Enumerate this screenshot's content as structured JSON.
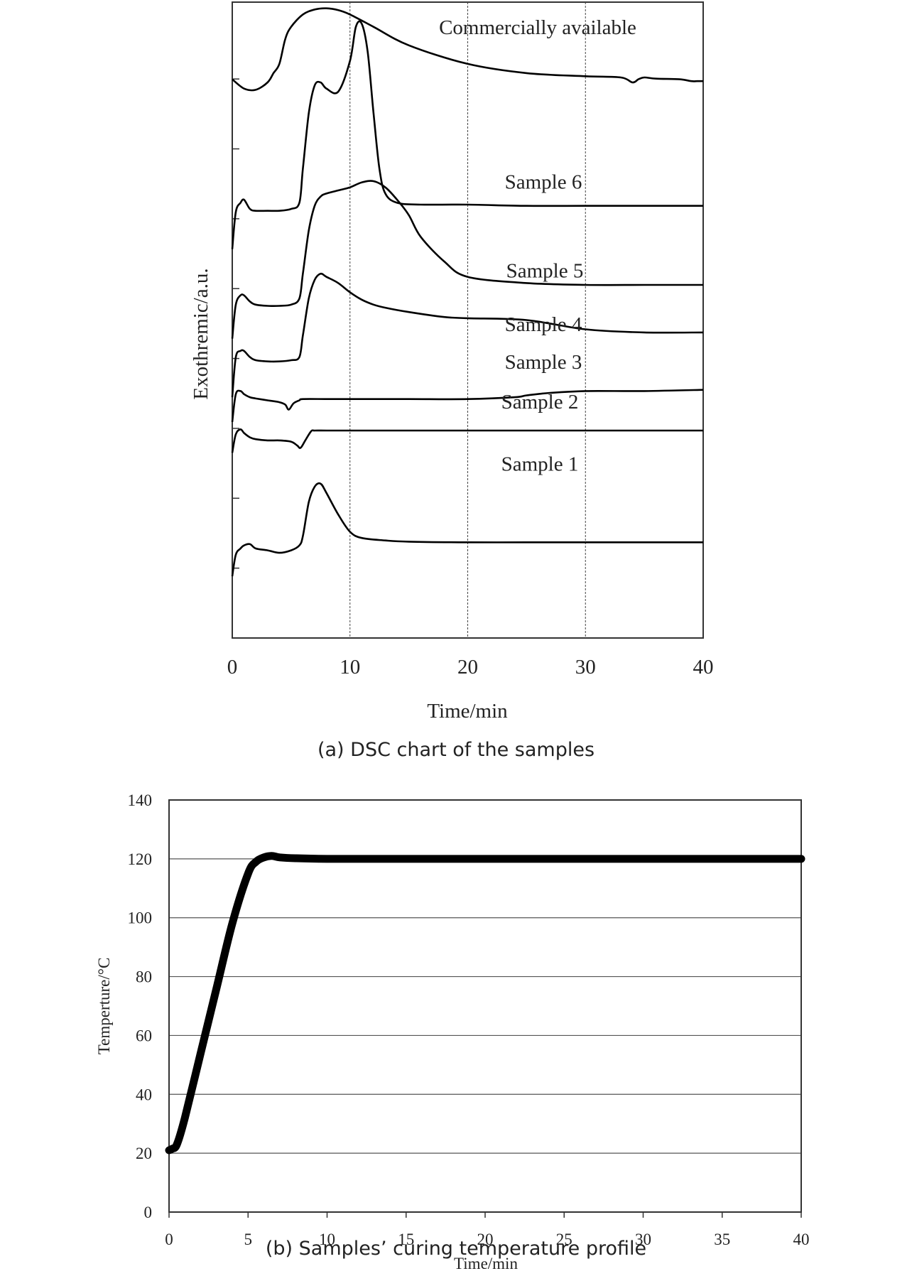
{
  "chart_data": [
    {
      "type": "line",
      "caption": "(a) DSC chart of the samples",
      "xlabel": "Time/min",
      "ylabel": "Exothremic/a.u.",
      "xlim": [
        0,
        40
      ],
      "x_ticks": [
        "0",
        "10",
        "20",
        "30",
        "40"
      ],
      "vertical_gridlines_at": [
        10,
        20,
        30
      ],
      "y_scale": "arbitrary units, stacked offset traces",
      "series": [
        {
          "name": "Commercially available",
          "x": [
            0,
            1,
            2,
            3,
            3.5,
            4,
            4.5,
            5,
            6,
            7,
            8,
            9,
            10,
            12,
            15,
            20,
            25,
            30,
            33,
            34,
            34.5,
            35,
            36,
            38,
            39,
            39.5,
            40
          ],
          "values": [
            9.05,
            8.9,
            8.88,
            9.0,
            9.15,
            9.3,
            9.7,
            9.9,
            10.1,
            10.18,
            10.2,
            10.17,
            10.1,
            9.9,
            9.6,
            9.3,
            9.15,
            9.1,
            9.08,
            9.0,
            9.05,
            9.08,
            9.06,
            9.05,
            9.02,
            9.02,
            9.02
          ]
        },
        {
          "name": "Sample 6",
          "x": [
            0,
            0.3,
            0.7,
            1,
            1.5,
            2,
            3,
            4,
            5,
            5.7,
            6,
            6.5,
            7,
            7.5,
            8,
            9,
            10,
            10.5,
            11,
            11.5,
            12,
            12.5,
            13,
            14,
            16,
            20,
            25,
            30,
            35,
            40
          ],
          "values": [
            6.3,
            6.9,
            7.05,
            7.1,
            6.95,
            6.92,
            6.92,
            6.92,
            6.95,
            7.05,
            7.6,
            8.5,
            8.95,
            9.0,
            8.9,
            8.85,
            9.35,
            9.9,
            9.95,
            9.5,
            8.5,
            7.6,
            7.2,
            7.05,
            7.02,
            7.02,
            7.0,
            7.0,
            7.0,
            7.0
          ]
        },
        {
          "name": "Sample 5",
          "x": [
            0,
            0.3,
            0.7,
            1,
            1.5,
            2,
            3,
            4,
            5,
            5.7,
            6,
            6.5,
            7,
            7.5,
            8,
            9,
            10,
            11,
            12,
            13,
            14,
            15,
            16,
            18,
            20,
            25,
            30,
            35,
            40
          ],
          "values": [
            4.85,
            5.4,
            5.55,
            5.55,
            5.45,
            5.4,
            5.38,
            5.38,
            5.4,
            5.5,
            5.9,
            6.6,
            7.0,
            7.15,
            7.2,
            7.25,
            7.3,
            7.38,
            7.4,
            7.3,
            7.1,
            6.85,
            6.5,
            6.1,
            5.85,
            5.75,
            5.72,
            5.72,
            5.72
          ]
        },
        {
          "name": "Sample 4",
          "x": [
            0,
            0.3,
            0.7,
            1,
            1.5,
            2,
            3,
            4,
            5,
            5.7,
            6,
            6.5,
            7,
            7.5,
            8,
            9,
            10,
            11,
            12,
            13,
            15,
            18,
            20,
            25,
            30,
            35,
            40
          ],
          "values": [
            3.9,
            4.55,
            4.65,
            4.65,
            4.55,
            4.5,
            4.48,
            4.48,
            4.5,
            4.55,
            4.9,
            5.5,
            5.8,
            5.9,
            5.85,
            5.75,
            5.6,
            5.48,
            5.4,
            5.35,
            5.28,
            5.2,
            5.18,
            5.15,
            5.0,
            4.95,
            4.95
          ]
        },
        {
          "name": "Sample 3",
          "x": [
            0,
            0.3,
            0.7,
            1,
            1.5,
            2,
            3,
            4,
            4.5,
            4.8,
            5.2,
            5.7,
            6,
            8,
            10,
            15,
            20,
            24,
            25,
            27,
            30,
            35,
            40
          ],
          "values": [
            3.5,
            3.95,
            4.0,
            3.95,
            3.9,
            3.88,
            3.85,
            3.82,
            3.78,
            3.7,
            3.8,
            3.85,
            3.87,
            3.87,
            3.87,
            3.87,
            3.87,
            3.9,
            3.93,
            3.97,
            4.0,
            4.0,
            4.02
          ]
        },
        {
          "name": "Sample 2",
          "x": [
            0,
            0.3,
            0.7,
            1,
            1.5,
            2,
            3,
            4,
            5,
            5.5,
            5.8,
            6.2,
            6.7,
            7,
            8,
            10,
            20,
            30,
            40
          ],
          "values": [
            3.0,
            3.3,
            3.38,
            3.32,
            3.25,
            3.22,
            3.2,
            3.2,
            3.18,
            3.12,
            3.08,
            3.2,
            3.35,
            3.36,
            3.36,
            3.36,
            3.36,
            3.36,
            3.36
          ]
        },
        {
          "name": "Sample 1",
          "x": [
            0,
            0.3,
            0.7,
            1,
            1.5,
            2,
            3,
            4,
            5,
            5.7,
            6,
            6.5,
            7,
            7.5,
            8,
            9,
            10,
            11,
            13,
            15,
            20,
            25,
            30,
            35,
            40
          ],
          "values": [
            1.0,
            1.35,
            1.45,
            1.5,
            1.52,
            1.45,
            1.42,
            1.38,
            1.42,
            1.5,
            1.65,
            2.2,
            2.45,
            2.5,
            2.35,
            2.0,
            1.72,
            1.62,
            1.58,
            1.56,
            1.55,
            1.55,
            1.55,
            1.55,
            1.55
          ]
        }
      ],
      "annotations": [
        "Commercially available",
        "Sample 6",
        "Sample 5",
        "Sample 4",
        "Sample 3",
        "Sample 2",
        "Sample 1"
      ]
    },
    {
      "type": "line",
      "caption": "(b) Samples’ curing temperature profile",
      "xlabel": "Time/min",
      "ylabel": "Temperture/°C",
      "xlim": [
        0,
        40
      ],
      "ylim": [
        0,
        140
      ],
      "x_ticks": [
        "0",
        "5",
        "10",
        "15",
        "20",
        "25",
        "30",
        "35",
        "40"
      ],
      "y_ticks": [
        "0",
        "20",
        "40",
        "60",
        "80",
        "100",
        "120",
        "140"
      ],
      "grid": "horizontal",
      "series": [
        {
          "x": [
            0,
            0.2,
            0.5,
            1,
            2,
            3,
            4,
            5,
            5.5,
            6,
            6.5,
            7,
            8,
            10,
            15,
            20,
            25,
            30,
            35,
            40
          ],
          "values": [
            21,
            21.5,
            23,
            32,
            54,
            76,
            98,
            115,
            119,
            120.5,
            121,
            120.5,
            120.2,
            120,
            120,
            120,
            120,
            120,
            120,
            120
          ]
        }
      ]
    }
  ],
  "colors": {
    "line": "#000000",
    "grid": "#555555",
    "axis": "#333333",
    "text": "#222222"
  }
}
